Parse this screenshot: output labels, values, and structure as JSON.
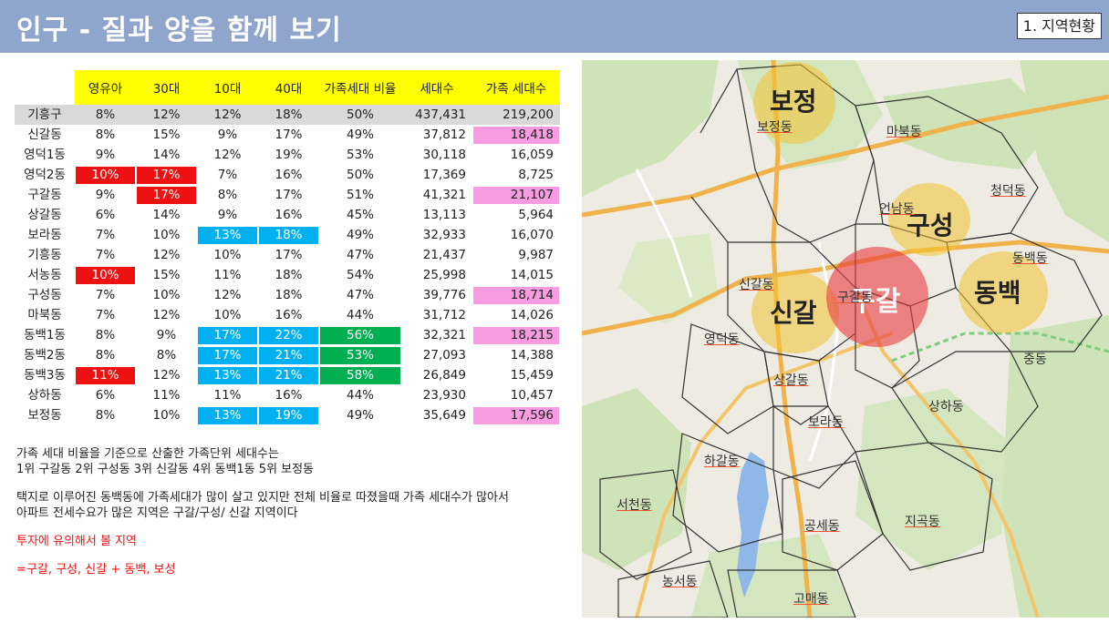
{
  "header": {
    "title": "인구 - 질과 양을 함께 보기",
    "section": "1. 지역현황"
  },
  "table": {
    "columns": [
      "",
      "영유아",
      "30대",
      "10대",
      "40대",
      "가족세대 비율",
      "세대수",
      "가족 세대수"
    ],
    "rows": [
      [
        "기흥구",
        "8%",
        "12%",
        "12%",
        "18%",
        "50%",
        "437,431",
        "219,200"
      ],
      [
        "신갈동",
        "8%",
        "15%",
        "9%",
        "17%",
        "49%",
        "37,812",
        "18,418"
      ],
      [
        "영덕1동",
        "9%",
        "14%",
        "12%",
        "19%",
        "53%",
        "30,118",
        "16,059"
      ],
      [
        "영덕2동",
        "10%",
        "17%",
        "7%",
        "16%",
        "50%",
        "17,369",
        "8,725"
      ],
      [
        "구갈동",
        "9%",
        "17%",
        "8%",
        "17%",
        "51%",
        "41,321",
        "21,107"
      ],
      [
        "상갈동",
        "6%",
        "14%",
        "9%",
        "16%",
        "45%",
        "13,113",
        "5,964"
      ],
      [
        "보라동",
        "7%",
        "10%",
        "13%",
        "18%",
        "49%",
        "32,933",
        "16,070"
      ],
      [
        "기흥동",
        "7%",
        "12%",
        "10%",
        "17%",
        "47%",
        "21,437",
        "9,987"
      ],
      [
        "서농동",
        "10%",
        "15%",
        "11%",
        "18%",
        "54%",
        "25,998",
        "14,015"
      ],
      [
        "구성동",
        "7%",
        "10%",
        "12%",
        "18%",
        "47%",
        "39,776",
        "18,714"
      ],
      [
        "마북동",
        "7%",
        "12%",
        "10%",
        "16%",
        "44%",
        "31,712",
        "14,026"
      ],
      [
        "동백1동",
        "8%",
        "9%",
        "17%",
        "22%",
        "56%",
        "32,321",
        "18,215"
      ],
      [
        "동백2동",
        "8%",
        "8%",
        "17%",
        "21%",
        "53%",
        "27,093",
        "14,388"
      ],
      [
        "동백3동",
        "11%",
        "12%",
        "13%",
        "21%",
        "58%",
        "26,849",
        "15,459"
      ],
      [
        "상하동",
        "6%",
        "11%",
        "11%",
        "16%",
        "44%",
        "23,930",
        "10,457"
      ],
      [
        "보정동",
        "8%",
        "10%",
        "13%",
        "19%",
        "49%",
        "35,649",
        "17,596"
      ]
    ],
    "highlights": {
      "red": [
        [
          3,
          1
        ],
        [
          3,
          2
        ],
        [
          4,
          2
        ],
        [
          8,
          1
        ],
        [
          13,
          1
        ]
      ],
      "blue": [
        [
          6,
          3
        ],
        [
          6,
          4
        ],
        [
          11,
          3
        ],
        [
          11,
          4
        ],
        [
          12,
          3
        ],
        [
          12,
          4
        ],
        [
          13,
          3
        ],
        [
          13,
          4
        ],
        [
          15,
          3
        ],
        [
          15,
          4
        ]
      ],
      "green": [
        [
          11,
          5
        ],
        [
          12,
          5
        ],
        [
          13,
          5
        ]
      ],
      "pink": [
        [
          1,
          7
        ],
        [
          4,
          7
        ],
        [
          9,
          7
        ],
        [
          11,
          7
        ],
        [
          15,
          7
        ]
      ]
    },
    "colors": {
      "header_bg": "#ffff00",
      "red": "#ee1111",
      "blue": "#00b0f0",
      "green": "#00b050",
      "pink": "#f79ce0"
    }
  },
  "notes": {
    "line1": "가족 세대 비율을 기준으로 산출한 가족단위 세대수는",
    "line2": "1위 구갈동  2위 구성동  3위 신갈동  4위 동백1동  5위 보정동",
    "line3": "택지로 이루어진 동백동에 가족세대가 많이 살고 있지만 전체 비율로 따졌을때 가족 세대수가 많아서",
    "line4": "아파트 전세수요가 많은 지역은 구갈/구성/ 신갈 지역이다",
    "line5": "투자에 유의해서 볼 지역",
    "line6": "=구갈, 구성, 신갈 + 동백, 보성"
  },
  "map": {
    "big_labels": {
      "bojeong": "보정",
      "guseong": "구성",
      "singal": "신갈",
      "gugal": "구갈",
      "dongbaek": "동백"
    },
    "labels": {
      "bojeong_dong": "보정동",
      "mabuk_dong": "마북동",
      "cheongdeok_dong": "청덕동",
      "eonnam_dong": "언남동",
      "dongbaek_dong": "동백동",
      "singal_dong": "신갈동",
      "gugal_dong": "구갈동",
      "yeongdeok_dong": "영덕동",
      "sanggal_dong": "상갈동",
      "jung_dong": "중동",
      "sangha_dong": "상하동",
      "bora_dong": "보라동",
      "hagal_dong": "하갈동",
      "seocheon_dong": "서천동",
      "gongse_dong": "공세동",
      "jigok_dong": "지곡동",
      "nongseo_dong": "농서동",
      "gomae_dong": "고매동"
    },
    "circle_colors": {
      "yellow": "#f2c230",
      "red": "#e8383d"
    }
  }
}
